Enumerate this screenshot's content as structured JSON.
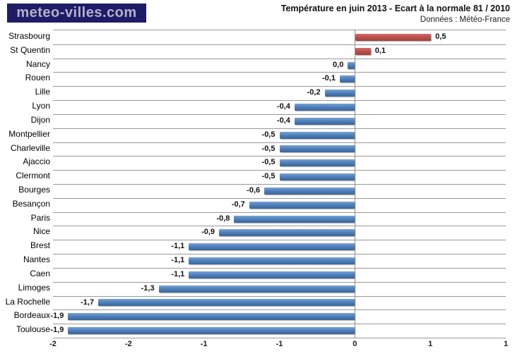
{
  "logo": {
    "text": "meteo-villes.com"
  },
  "header": {
    "title": "Température en juin 2013 - Ecart à la normale 81 / 2010",
    "subtitle": "Données : Météo-France"
  },
  "colors": {
    "positive_bar": "#c0504d",
    "negative_bar": "#4f81bd",
    "logo_bg": "#1e1b67",
    "logo_fg": "#b4b2c8",
    "gridline": "#999999"
  },
  "chart_data": {
    "type": "bar",
    "orientation": "horizontal",
    "title": "Température en juin 2013 - Ecart à la normale 81 / 2010",
    "subtitle": "Données : Météo-France",
    "categories": [
      "Strasbourg",
      "St Quentin",
      "Nancy",
      "Rouen",
      "Lille",
      "Lyon",
      "Dijon",
      "Montpellier",
      "Charleville",
      "Ajaccio",
      "Clermont",
      "Bourges",
      "Besançon",
      "Paris",
      "Nice",
      "Brest",
      "Nantes",
      "Caen",
      "Limoges",
      "La Rochelle",
      "Bordeaux",
      "Toulouse"
    ],
    "values": [
      0.5,
      0.1,
      0.0,
      -0.1,
      -0.2,
      -0.4,
      -0.4,
      -0.5,
      -0.5,
      -0.5,
      -0.5,
      -0.6,
      -0.7,
      -0.8,
      -0.9,
      -1.1,
      -1.1,
      -1.1,
      -1.3,
      -1.7,
      -1.9,
      -1.9
    ],
    "value_labels": [
      "0,5",
      "0,1",
      "0,0",
      "-0,1",
      "-0,2",
      "-0,4",
      "-0,4",
      "-0,5",
      "-0,5",
      "-0,5",
      "-0,5",
      "-0,6",
      "-0,7",
      "-0,8",
      "-0,9",
      "-1,1",
      "-1,1",
      "-1,1",
      "-1,3",
      "-1,7",
      "-1,9",
      "-1,9"
    ],
    "xlim": [
      -2,
      1
    ],
    "x_ticks": [
      -2,
      -1.5,
      -1,
      -0.5,
      0,
      0.5,
      1
    ],
    "x_tick_labels": [
      "-2",
      "-2",
      "-1",
      "-1",
      "0",
      "1",
      "1"
    ],
    "grid": "horizontal category separators + zero axis line",
    "legend": "none",
    "positive_color": "#c0504d",
    "negative_color": "#4f81bd"
  }
}
